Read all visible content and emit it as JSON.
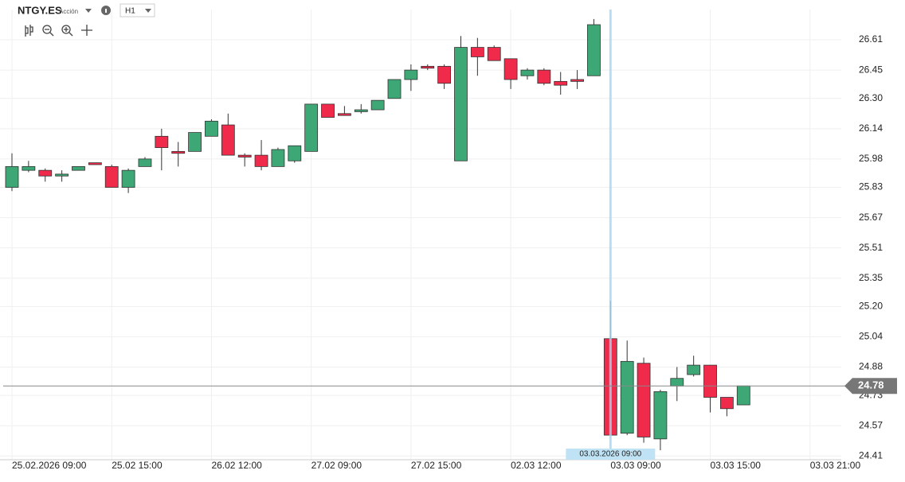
{
  "header": {
    "symbol": "NTGY.ES",
    "kind": "Acción",
    "timeframe": "H1"
  },
  "chart_data": {
    "type": "candlestick",
    "categories": [
      "25.02.2026 09:00",
      null,
      null,
      null,
      null,
      null,
      "25.02 15:00",
      null,
      null,
      null,
      null,
      null,
      "26.02 12:00",
      null,
      null,
      null,
      null,
      null,
      "27.02 09:00",
      null,
      null,
      null,
      null,
      null,
      "27.02 15:00",
      null,
      null,
      null,
      null,
      null,
      "02.03 12:00",
      null,
      null,
      null,
      null,
      null,
      "03.03 09:00",
      null,
      null,
      null,
      null,
      null,
      "03.03 15:00",
      null,
      null,
      null,
      null,
      null,
      "03.03 21:00"
    ],
    "open": [
      25.83,
      25.92,
      25.92,
      25.89,
      25.92,
      25.96,
      25.94,
      25.83,
      25.94,
      26.1,
      26.02,
      26.02,
      26.1,
      26.16,
      26.0,
      26.0,
      25.94,
      25.97,
      26.02,
      26.27,
      26.22,
      26.23,
      26.24,
      26.3,
      26.4,
      26.47,
      26.47,
      25.97,
      26.57,
      26.57,
      26.51,
      26.42,
      26.45,
      26.39,
      26.4,
      26.42,
      25.03,
      24.53,
      24.9,
      24.5,
      24.78,
      24.84,
      24.89,
      24.72,
      24.68,
      null,
      null,
      null,
      null
    ],
    "high": [
      26.01,
      25.97,
      25.93,
      25.92,
      25.92,
      25.96,
      25.95,
      25.93,
      25.99,
      26.14,
      26.07,
      26.12,
      26.19,
      26.22,
      26.01,
      26.08,
      26.04,
      26.05,
      26.27,
      26.27,
      26.26,
      26.27,
      26.29,
      26.4,
      26.48,
      26.48,
      26.48,
      26.63,
      26.62,
      26.58,
      26.51,
      26.46,
      26.46,
      26.44,
      26.45,
      26.72,
      25.23,
      25.02,
      24.93,
      24.76,
      24.88,
      24.94,
      24.89,
      24.72,
      24.77,
      null,
      null,
      null,
      null
    ],
    "low": [
      25.81,
      25.91,
      25.86,
      25.86,
      25.92,
      25.95,
      25.83,
      25.8,
      25.94,
      25.92,
      25.94,
      26.02,
      26.1,
      26.0,
      25.94,
      25.92,
      25.94,
      25.96,
      26.02,
      26.2,
      26.21,
      26.22,
      26.24,
      26.3,
      26.34,
      26.45,
      26.35,
      25.97,
      26.42,
      26.5,
      26.35,
      26.4,
      26.37,
      26.32,
      26.35,
      26.42,
      24.52,
      24.52,
      24.48,
      24.44,
      24.7,
      24.83,
      24.64,
      24.62,
      24.68,
      null,
      null,
      null,
      null
    ],
    "close": [
      25.94,
      25.94,
      25.89,
      25.9,
      25.94,
      25.95,
      25.83,
      25.92,
      25.98,
      26.04,
      26.01,
      26.12,
      26.18,
      26.0,
      25.99,
      25.94,
      26.03,
      26.05,
      26.27,
      26.2,
      26.21,
      26.24,
      26.29,
      26.4,
      26.45,
      26.46,
      26.38,
      26.57,
      26.52,
      26.5,
      26.4,
      26.45,
      26.38,
      26.37,
      26.39,
      26.69,
      24.52,
      24.91,
      24.51,
      24.75,
      24.82,
      24.89,
      24.72,
      24.66,
      24.78,
      null,
      null,
      null,
      null
    ],
    "up_color": "#3da876",
    "down_color": "#f02a4b",
    "ylim": [
      24.39,
      26.77
    ],
    "yticks": [
      24.41,
      24.57,
      24.73,
      24.88,
      25.04,
      {
        "value": 25.2,
        "label": "25.20"
      },
      25.35,
      25.51,
      25.67,
      25.83,
      25.98,
      26.14,
      {
        "value": 26.3,
        "label": "26.30"
      },
      26.45,
      26.61
    ],
    "grid": true,
    "last_price": 24.78,
    "crosshair_label": "03.03.2026 09:00"
  }
}
